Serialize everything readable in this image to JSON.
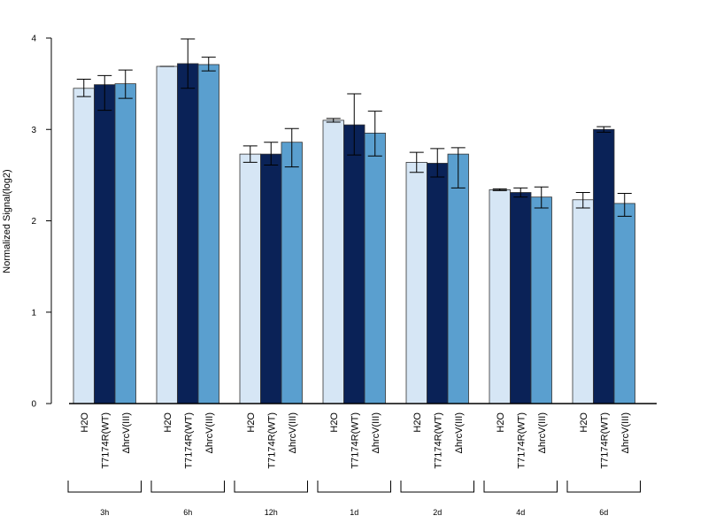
{
  "chart_data": {
    "type": "bar",
    "title": "",
    "xlabel": "",
    "ylabel": "Normalized Signal(log2)",
    "ylim": [
      0,
      4
    ],
    "yticks": [
      "0",
      "1",
      "2",
      "3",
      "4"
    ],
    "grid": false,
    "groups": [
      "3h",
      "6h",
      "12h",
      "1d",
      "2d",
      "4d",
      "6d"
    ],
    "bar_labels": [
      "H2O",
      "T7174R(WT)",
      "ΔhrcV(III)"
    ],
    "series": [
      {
        "color": "#d6e6f5",
        "values": [
          3.45,
          3.69,
          2.73,
          3.1,
          2.64,
          2.34,
          2.23
        ],
        "error_low": [
          3.36,
          3.69,
          2.64,
          3.08,
          2.53,
          2.33,
          2.14
        ],
        "error_high": [
          3.55,
          3.69,
          2.82,
          3.12,
          2.75,
          2.35,
          2.31
        ]
      },
      {
        "color": "#0a2257",
        "values": [
          3.49,
          3.72,
          2.73,
          3.05,
          2.63,
          2.31,
          3.0
        ],
        "error_low": [
          3.21,
          3.45,
          2.61,
          2.72,
          2.48,
          2.26,
          2.97
        ],
        "error_high": [
          3.59,
          3.99,
          2.86,
          3.39,
          2.79,
          2.36,
          3.03
        ]
      },
      {
        "color": "#5a9fcf",
        "values": [
          3.5,
          3.71,
          2.86,
          2.96,
          2.73,
          2.26,
          2.19
        ],
        "error_low": [
          3.34,
          3.64,
          2.59,
          2.71,
          2.36,
          2.14,
          2.05
        ],
        "error_high": [
          3.65,
          3.79,
          3.01,
          3.2,
          2.8,
          2.37,
          2.3
        ]
      }
    ]
  }
}
